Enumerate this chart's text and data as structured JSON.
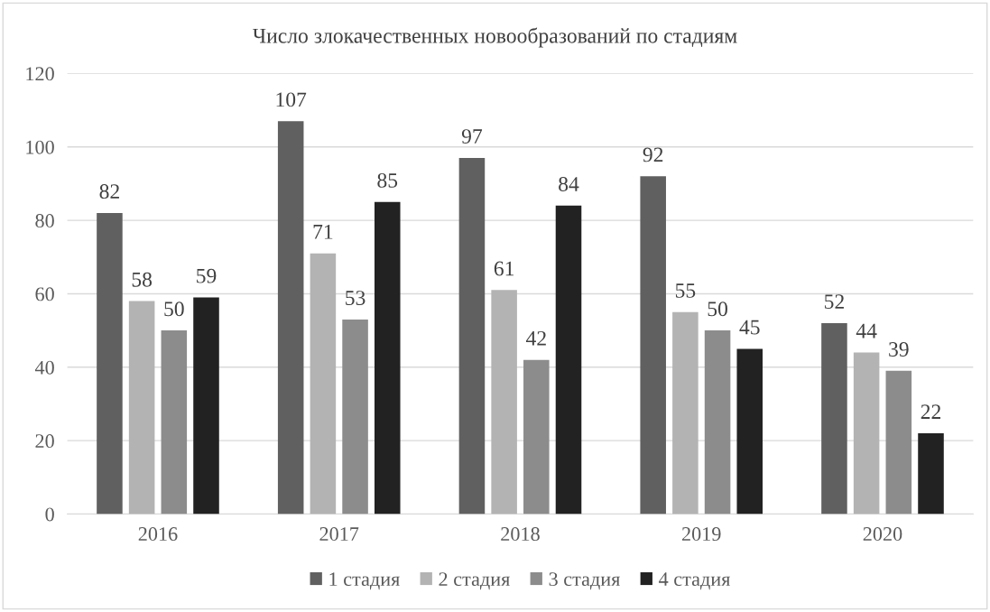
{
  "chart_data": {
    "type": "bar",
    "title": "Число злокачественных новообразований по стадиям",
    "categories": [
      "2016",
      "2017",
      "2018",
      "2019",
      "2020"
    ],
    "series": [
      {
        "name": "1 стадия",
        "color": "#606060",
        "values": [
          82,
          107,
          97,
          92,
          52
        ]
      },
      {
        "name": "2 стадия",
        "color": "#b3b3b3",
        "values": [
          58,
          71,
          61,
          55,
          44
        ]
      },
      {
        "name": "3 стадия",
        "color": "#8c8c8c",
        "values": [
          50,
          53,
          42,
          50,
          39
        ]
      },
      {
        "name": "4 стадия",
        "color": "#222222",
        "values": [
          59,
          85,
          84,
          45,
          22
        ]
      }
    ],
    "ylim": [
      0,
      120
    ],
    "yticks": [
      0,
      20,
      40,
      60,
      80,
      100,
      120
    ],
    "grid": "y",
    "legend": "bottom",
    "data_labels": true
  }
}
